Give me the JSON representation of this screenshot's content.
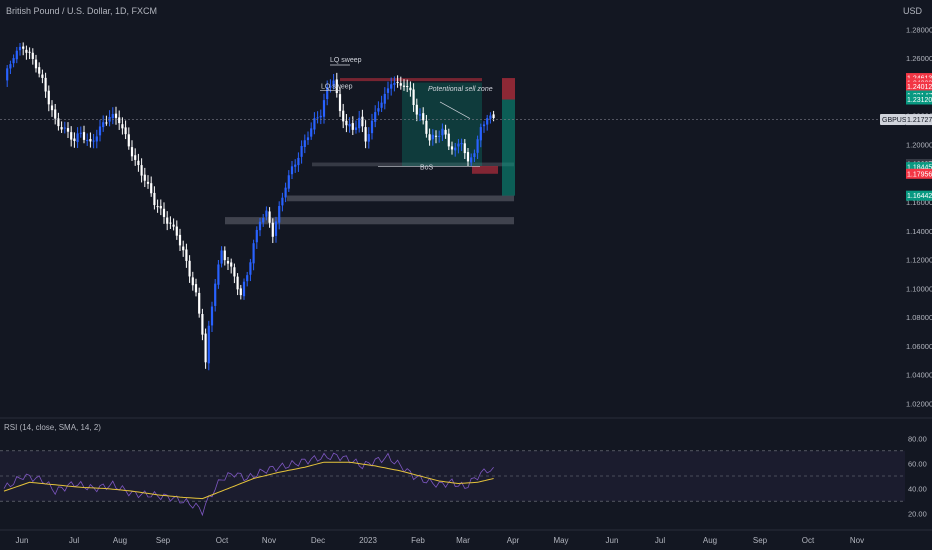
{
  "header": {
    "symbol": "British Pound / U.S. Dollar, 1D, FXCM",
    "currency": "USD"
  },
  "rsi_label": "RSI (14, close, SMA, 14, 2)",
  "colors": {
    "background": "#131722",
    "bull": "#2962ff",
    "bear": "#ffffff",
    "sell": "#f23645",
    "buy": "#089981",
    "rsi": "#7e57c2",
    "rsi_ma": "#e5c33b"
  },
  "chart_data": {
    "type": "candlestick",
    "price_axis": {
      "ticks": [
        "1.28000",
        "1.26000",
        "1.24000",
        "1.22000",
        "1.20000",
        "1.18000",
        "1.16000",
        "1.14000",
        "1.12000",
        "1.10000",
        "1.08000",
        "1.06000",
        "1.04000",
        "1.02000"
      ],
      "range": [
        1.012,
        1.292
      ]
    },
    "time_axis": {
      "ticks": [
        "Jun",
        "Jul",
        "Aug",
        "Sep",
        "Oct",
        "Nov",
        "Dec",
        "2023",
        "Feb",
        "Mar",
        "Apr",
        "May",
        "Jun",
        "Jul",
        "Aug",
        "Sep",
        "Oct",
        "Nov"
      ]
    },
    "current_price": {
      "label": "GBPUSD",
      "value": "1.21727"
    },
    "price_tags": [
      {
        "value": "1.24613",
        "color": "#f23645"
      },
      {
        "value": "1.24222",
        "color": "#f23645"
      },
      {
        "value": "1.24012",
        "color": "#f23645"
      },
      {
        "value": "1.23147",
        "color": "#089981"
      },
      {
        "value": "1.23120",
        "color": "#089981"
      },
      {
        "value": "1.18637",
        "color": "#363a45"
      },
      {
        "value": "1.18445",
        "color": "#089981"
      },
      {
        "value": "1.17956",
        "color": "#f23645"
      },
      {
        "value": "1.16442",
        "color": "#089981"
      }
    ],
    "annotations": {
      "lq_sweep_1": "LQ sweep",
      "lq_sweep_2": "LQ sweep",
      "sell_zone": "Potentional sell zone",
      "bos": "BoS"
    },
    "path": [
      [
        0,
        1.245
      ],
      [
        3,
        1.262
      ],
      [
        6,
        1.268
      ],
      [
        8,
        1.262
      ],
      [
        10,
        1.255
      ],
      [
        12,
        1.244
      ],
      [
        14,
        1.23
      ],
      [
        16,
        1.216
      ],
      [
        19,
        1.21
      ],
      [
        22,
        1.203
      ],
      [
        24,
        1.208
      ],
      [
        27,
        1.2
      ],
      [
        30,
        1.211
      ],
      [
        33,
        1.22
      ],
      [
        36,
        1.217
      ],
      [
        38,
        1.205
      ],
      [
        41,
        1.188
      ],
      [
        44,
        1.176
      ],
      [
        47,
        1.16
      ],
      [
        50,
        1.15
      ],
      [
        54,
        1.138
      ],
      [
        57,
        1.118
      ],
      [
        60,
        1.095
      ],
      [
        62,
        1.07
      ],
      [
        63,
        1.048
      ],
      [
        64,
        1.072
      ],
      [
        66,
        1.105
      ],
      [
        68,
        1.125
      ],
      [
        70,
        1.118
      ],
      [
        72,
        1.108
      ],
      [
        74,
        1.095
      ],
      [
        76,
        1.11
      ],
      [
        78,
        1.13
      ],
      [
        80,
        1.148
      ],
      [
        82,
        1.152
      ],
      [
        84,
        1.138
      ],
      [
        86,
        1.155
      ],
      [
        88,
        1.172
      ],
      [
        90,
        1.183
      ],
      [
        92,
        1.192
      ],
      [
        95,
        1.207
      ],
      [
        97,
        1.216
      ],
      [
        99,
        1.222
      ],
      [
        101,
        1.238
      ],
      [
        103,
        1.246
      ],
      [
        105,
        1.222
      ],
      [
        107,
        1.214
      ],
      [
        109,
        1.21
      ],
      [
        111,
        1.218
      ],
      [
        113,
        1.203
      ],
      [
        115,
        1.215
      ],
      [
        117,
        1.227
      ],
      [
        119,
        1.233
      ],
      [
        121,
        1.244
      ],
      [
        123,
        1.241
      ],
      [
        125,
        1.242
      ],
      [
        127,
        1.236
      ],
      [
        129,
        1.222
      ],
      [
        131,
        1.216
      ],
      [
        133,
        1.203
      ],
      [
        135,
        1.206
      ],
      [
        137,
        1.21
      ],
      [
        139,
        1.2
      ],
      [
        141,
        1.196
      ],
      [
        143,
        1.203
      ],
      [
        145,
        1.186
      ],
      [
        147,
        1.196
      ],
      [
        149,
        1.21
      ],
      [
        151,
        1.22
      ],
      [
        153,
        1.217
      ]
    ],
    "rsi_axis": {
      "ticks": [
        "80.00",
        "60.00",
        "40.00",
        "20.00"
      ],
      "range": [
        15,
        85
      ]
    },
    "rsi_path": [
      [
        0,
        40
      ],
      [
        6,
        50
      ],
      [
        12,
        47
      ],
      [
        16,
        38
      ],
      [
        22,
        44
      ],
      [
        28,
        40
      ],
      [
        34,
        43
      ],
      [
        40,
        36
      ],
      [
        46,
        35
      ],
      [
        52,
        33
      ],
      [
        56,
        30
      ],
      [
        60,
        26
      ],
      [
        62,
        22
      ],
      [
        64,
        32
      ],
      [
        68,
        48
      ],
      [
        72,
        52
      ],
      [
        76,
        48
      ],
      [
        82,
        55
      ],
      [
        88,
        58
      ],
      [
        94,
        62
      ],
      [
        100,
        65
      ],
      [
        104,
        66
      ],
      [
        108,
        63
      ],
      [
        112,
        58
      ],
      [
        116,
        62
      ],
      [
        120,
        65
      ],
      [
        124,
        58
      ],
      [
        128,
        50
      ],
      [
        132,
        46
      ],
      [
        136,
        43
      ],
      [
        140,
        45
      ],
      [
        144,
        41
      ],
      [
        148,
        50
      ],
      [
        151,
        55
      ],
      [
        153,
        54
      ]
    ],
    "rsi_ma_path": [
      [
        0,
        38
      ],
      [
        8,
        45
      ],
      [
        16,
        43
      ],
      [
        24,
        41
      ],
      [
        32,
        40
      ],
      [
        40,
        38
      ],
      [
        48,
        35
      ],
      [
        56,
        33
      ],
      [
        62,
        32
      ],
      [
        70,
        40
      ],
      [
        78,
        48
      ],
      [
        86,
        53
      ],
      [
        94,
        57
      ],
      [
        100,
        61
      ],
      [
        108,
        61
      ],
      [
        116,
        58
      ],
      [
        124,
        54
      ],
      [
        130,
        50
      ],
      [
        136,
        46
      ],
      [
        142,
        44
      ],
      [
        148,
        45
      ],
      [
        153,
        48
      ]
    ]
  }
}
